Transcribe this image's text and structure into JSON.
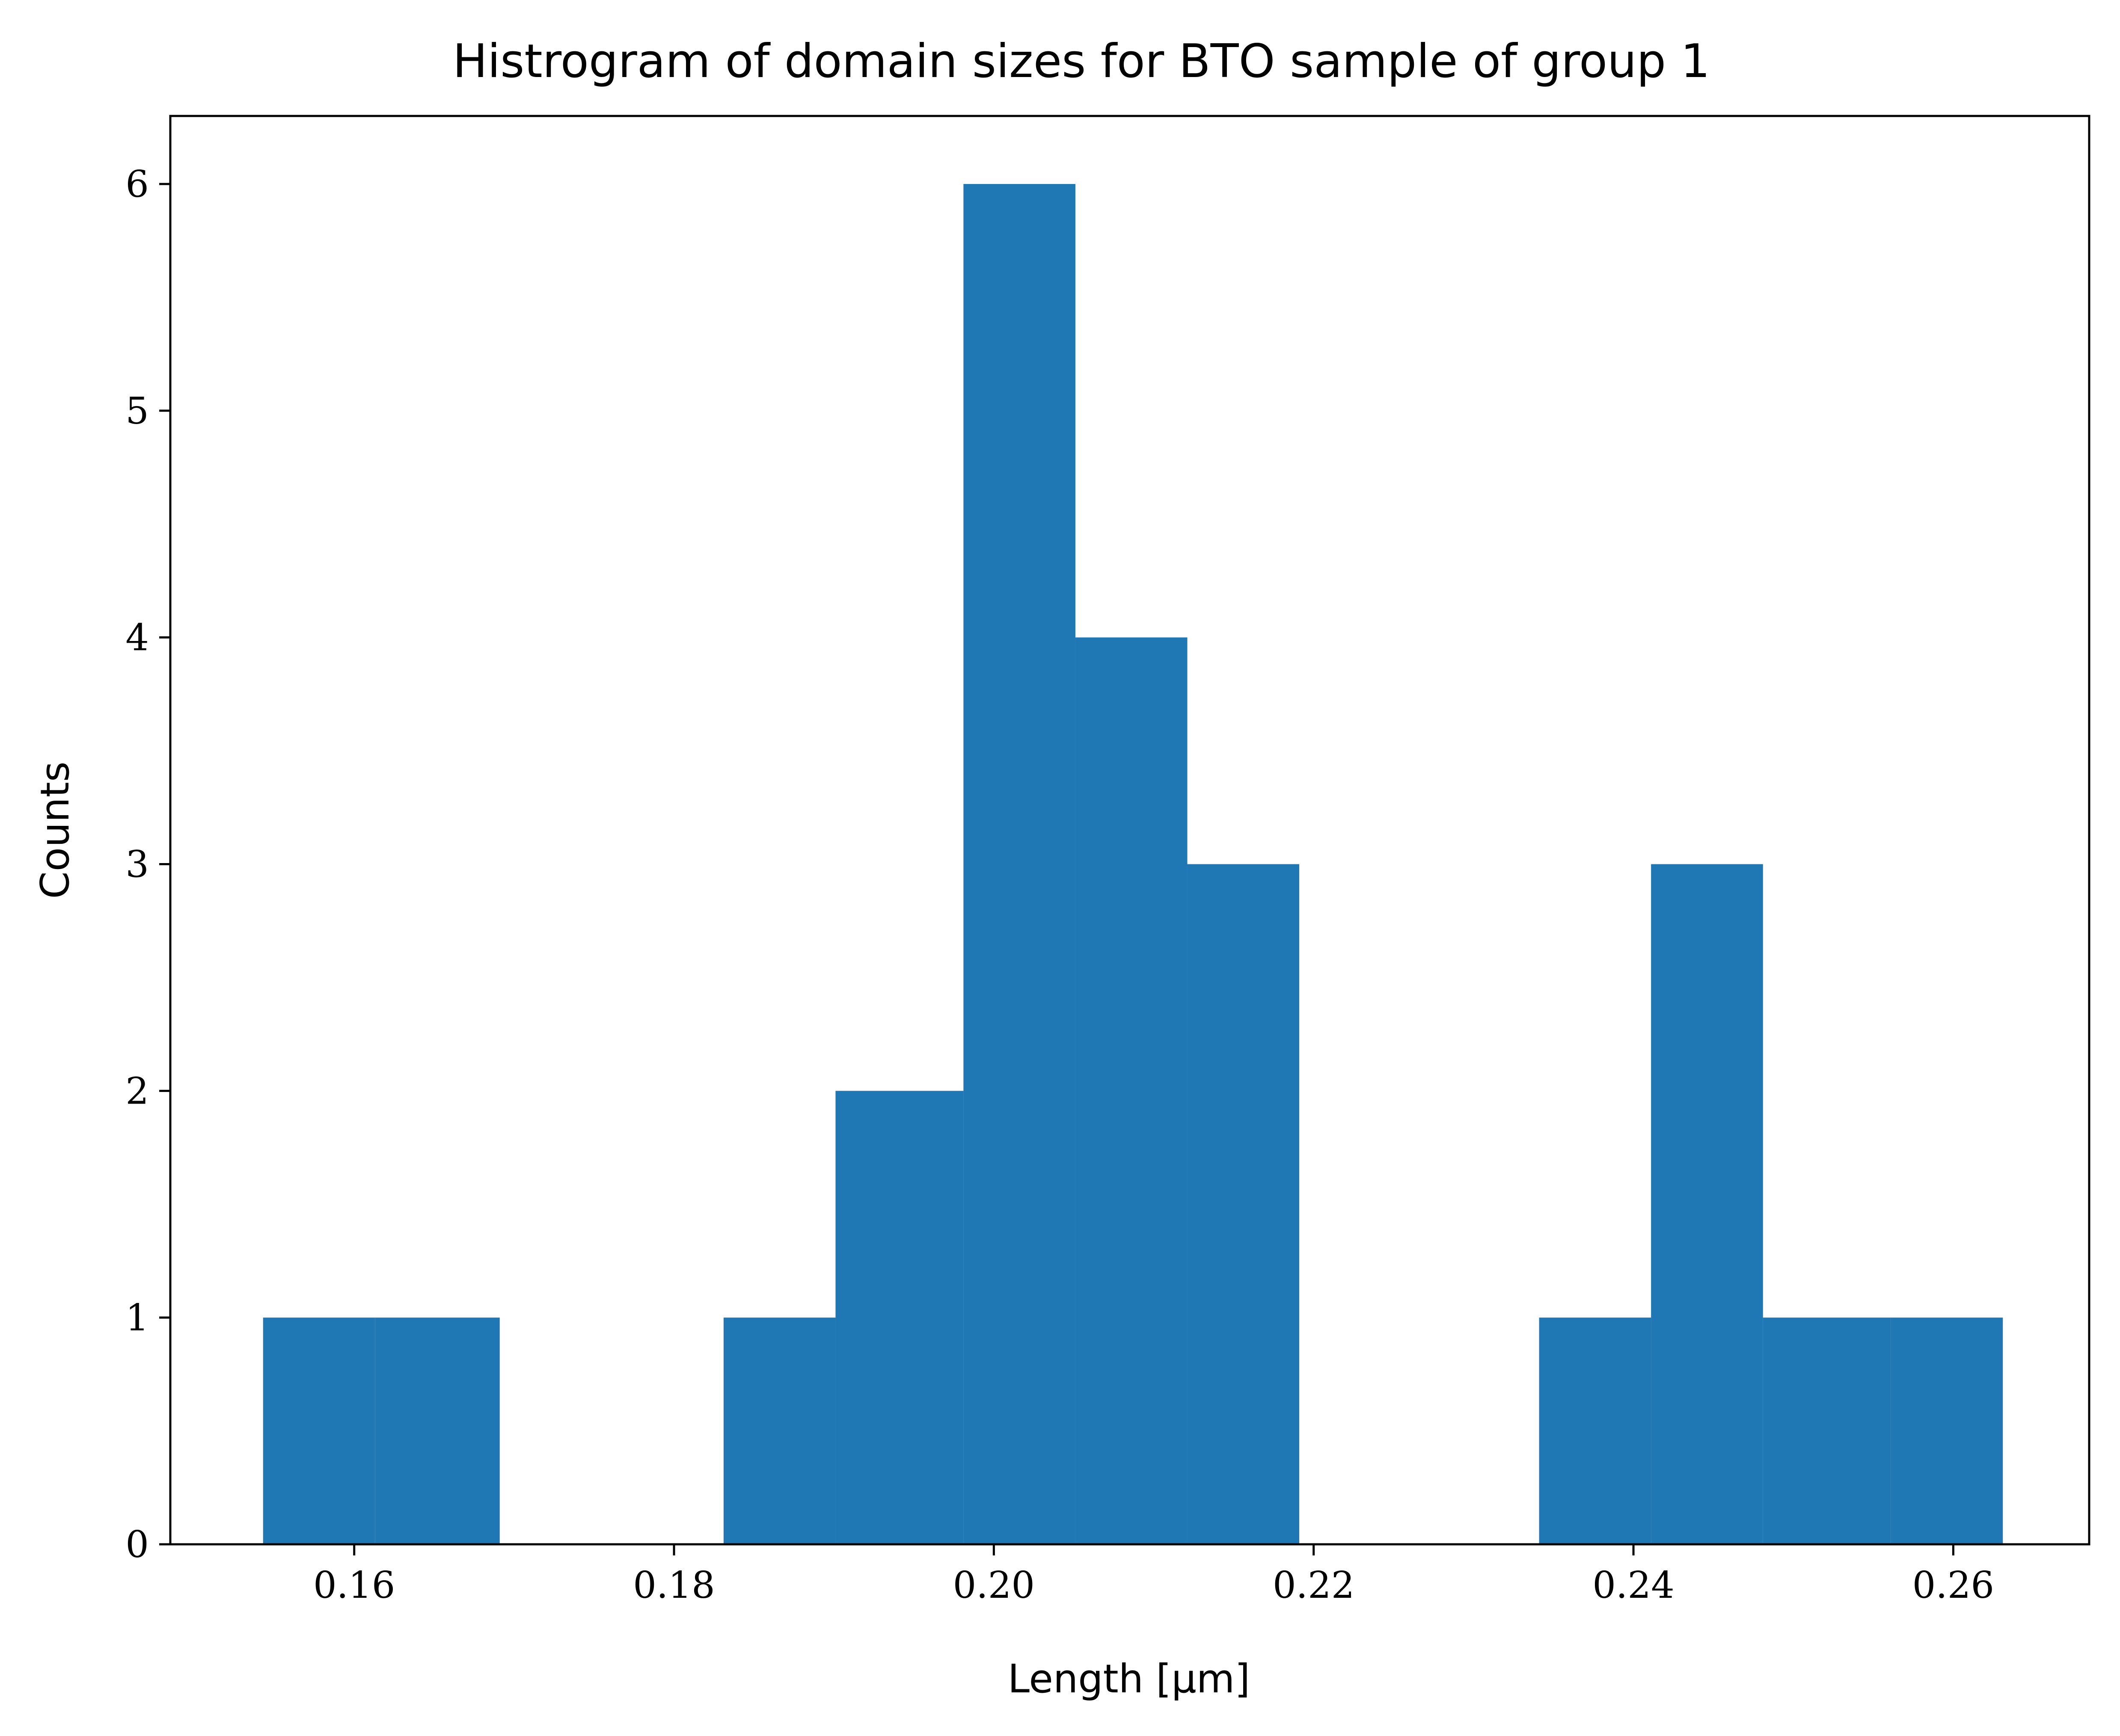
{
  "chart_data": {
    "type": "bar",
    "title": "Histrogram of domain sizes for BTO sample of group 1",
    "xlabel": "Length [μm]",
    "ylabel": "Counts",
    "xlim": [
      0.1485,
      0.2685
    ],
    "ylim": [
      0,
      6.3
    ],
    "xticks": [
      "0.16",
      "0.18",
      "0.20",
      "0.22",
      "0.24",
      "0.26"
    ],
    "xtick_values": [
      0.16,
      0.18,
      0.2,
      0.22,
      0.24,
      0.26
    ],
    "yticks": [
      "0",
      "1",
      "2",
      "3",
      "4",
      "5",
      "6"
    ],
    "ytick_values": [
      0,
      1,
      2,
      3,
      4,
      5,
      6
    ],
    "bins": [
      {
        "x0": 0.1543,
        "x1": 0.1613,
        "count": 1
      },
      {
        "x0": 0.1613,
        "x1": 0.1691,
        "count": 1
      },
      {
        "x0": 0.1831,
        "x1": 0.1901,
        "count": 1
      },
      {
        "x0": 0.1901,
        "x1": 0.1981,
        "count": 2
      },
      {
        "x0": 0.1981,
        "x1": 0.2051,
        "count": 6
      },
      {
        "x0": 0.2051,
        "x1": 0.2121,
        "count": 4
      },
      {
        "x0": 0.2121,
        "x1": 0.2191,
        "count": 3
      },
      {
        "x0": 0.2341,
        "x1": 0.2411,
        "count": 1
      },
      {
        "x0": 0.2411,
        "x1": 0.2481,
        "count": 3
      },
      {
        "x0": 0.2481,
        "x1": 0.2561,
        "count": 1
      },
      {
        "x0": 0.2561,
        "x1": 0.2631,
        "count": 1
      }
    ],
    "bar_color": "#1f77b4",
    "grid": false,
    "legend": false
  }
}
